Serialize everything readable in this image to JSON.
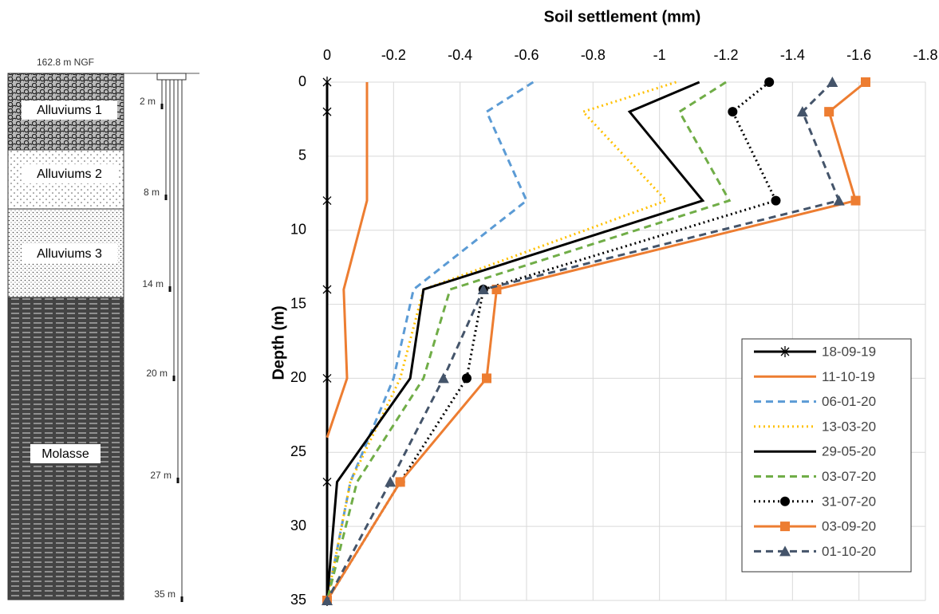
{
  "profile": {
    "datum": "162.8 m NGF",
    "layers": [
      "Alluviums 1",
      "Alluviums 2",
      "Alluviums 3",
      "Molasse"
    ],
    "sensor_labels": [
      "2 m",
      "8 m",
      "14 m",
      "20 m",
      "27 m",
      "35 m"
    ]
  },
  "chart_data": {
    "type": "line",
    "title": "Soil settlement (mm)",
    "y_label": "Depth (m)",
    "xlim": [
      0,
      -1.8
    ],
    "xticks": [
      0,
      -0.2,
      -0.4,
      -0.6,
      -0.8,
      -1,
      -1.2,
      -1.4,
      -1.6,
      -1.8
    ],
    "ylim": [
      0,
      35
    ],
    "yticks": [
      0,
      5,
      10,
      15,
      20,
      25,
      30,
      35
    ],
    "y_reversed": true,
    "grid": true,
    "legend": "lower right",
    "series": [
      {
        "name": "18-09-19",
        "color": "#000000",
        "dash": "solid",
        "marker": "star",
        "depths": [
          0,
          2,
          8,
          14,
          20,
          27,
          35
        ],
        "values": [
          0,
          0,
          0,
          0,
          0,
          0,
          0
        ]
      },
      {
        "name": "11-10-19",
        "color": "#ED7D31",
        "dash": "solid",
        "marker": "none",
        "depths": [
          0,
          2,
          8,
          14,
          20,
          24
        ],
        "values": [
          -0.12,
          -0.12,
          -0.12,
          -0.05,
          -0.06,
          0
        ]
      },
      {
        "name": "06-01-20",
        "color": "#5B9BD5",
        "dash": "dash",
        "marker": "none",
        "depths": [
          0,
          2,
          8,
          14,
          20,
          27,
          35
        ],
        "values": [
          -0.62,
          -0.48,
          -0.6,
          -0.26,
          -0.2,
          -0.07,
          0
        ]
      },
      {
        "name": "13-03-20",
        "color": "#FFC000",
        "dash": "dot",
        "marker": "none",
        "depths": [
          0,
          2,
          8,
          14,
          20,
          27,
          35
        ],
        "values": [
          -1.05,
          -0.77,
          -1.02,
          -0.29,
          -0.22,
          -0.07,
          0
        ]
      },
      {
        "name": "29-05-20",
        "color": "#000000",
        "dash": "solid",
        "marker": "none",
        "depths": [
          0,
          2,
          8,
          14,
          20,
          27,
          35
        ],
        "values": [
          -1.12,
          -0.91,
          -1.13,
          -0.29,
          -0.25,
          -0.03,
          0
        ]
      },
      {
        "name": "03-07-20",
        "color": "#70AD47",
        "dash": "dash",
        "marker": "none",
        "depths": [
          0,
          2,
          8,
          14,
          20,
          27,
          35
        ],
        "values": [
          -1.2,
          -1.06,
          -1.21,
          -0.37,
          -0.29,
          -0.09,
          0
        ]
      },
      {
        "name": "31-07-20",
        "color": "#000000",
        "dash": "dot",
        "marker": "circle",
        "depths": [
          0,
          2,
          8,
          14,
          20,
          27,
          35
        ],
        "values": [
          -1.33,
          -1.22,
          -1.35,
          -0.47,
          -0.42,
          -0.22,
          0
        ]
      },
      {
        "name": "03-09-20",
        "color": "#ED7D31",
        "dash": "solid",
        "marker": "square",
        "depths": [
          0,
          2,
          8,
          14,
          20,
          27,
          35
        ],
        "values": [
          -1.62,
          -1.51,
          -1.59,
          -0.51,
          -0.48,
          -0.22,
          0
        ]
      },
      {
        "name": "01-10-20",
        "color": "#44546A",
        "dash": "dash",
        "marker": "triangle",
        "depths": [
          0,
          2,
          8,
          14,
          20,
          27,
          35
        ],
        "values": [
          -1.52,
          -1.43,
          -1.54,
          -0.47,
          -0.35,
          -0.19,
          0
        ]
      }
    ]
  }
}
